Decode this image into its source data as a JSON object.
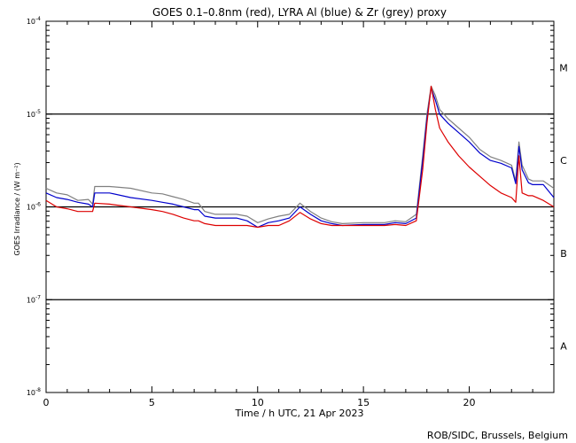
{
  "chart_data": {
    "type": "line",
    "title": "GOES 0.1–0.8nm (red), LYRA Al (blue) & Zr (grey) proxy",
    "xlabel": "Time / h UTC, 21 Apr 2023",
    "ylabel": "GOES Irradiance / (W m⁻²)",
    "xlim": [
      0,
      24
    ],
    "ylim_log10": [
      -8,
      -4
    ],
    "x_ticks": [
      0,
      5,
      10,
      15,
      20
    ],
    "y_tick_labels": [
      {
        "exp": -4,
        "label": "10",
        "sup": "-4"
      },
      {
        "exp": -5,
        "label": "10",
        "sup": "-5"
      },
      {
        "exp": -6,
        "label": "10",
        "sup": "-6"
      },
      {
        "exp": -7,
        "label": "10",
        "sup": "-7"
      },
      {
        "exp": -8,
        "label": "10",
        "sup": "-8"
      }
    ],
    "reference_lines_exp": [
      -5,
      -6,
      -7
    ],
    "flare_classes": [
      {
        "label": "M",
        "center_exp": -4.5
      },
      {
        "label": "C",
        "center_exp": -5.5
      },
      {
        "label": "B",
        "center_exp": -6.5
      },
      {
        "label": "A",
        "center_exp": -7.5
      }
    ],
    "series": [
      {
        "name": "LYRA Zr proxy",
        "color": "#808080",
        "x": [
          0,
          0.5,
          1,
          1.5,
          2,
          2.2,
          2.3,
          3,
          4,
          5,
          5.5,
          6,
          6.5,
          7,
          7.2,
          7.5,
          8,
          8.5,
          9,
          9.5,
          10,
          10.5,
          11,
          11.5,
          12,
          12.5,
          13,
          13.5,
          14,
          15,
          16,
          16.5,
          17,
          17.5,
          17.8,
          18,
          18.2,
          18.4,
          18.6,
          19,
          19.5,
          20,
          20.5,
          21,
          21.5,
          22,
          22.2,
          22.35,
          22.5,
          22.8,
          23,
          23.5,
          24
        ],
        "log10": [
          -5.8,
          -5.85,
          -5.87,
          -5.93,
          -5.92,
          -5.97,
          -5.78,
          -5.78,
          -5.8,
          -5.85,
          -5.86,
          -5.89,
          -5.92,
          -5.96,
          -5.96,
          -6.05,
          -6.08,
          -6.08,
          -6.08,
          -6.1,
          -6.17,
          -6.13,
          -6.1,
          -6.08,
          -5.96,
          -6.05,
          -6.12,
          -6.16,
          -6.18,
          -6.17,
          -6.17,
          -6.15,
          -6.16,
          -6.08,
          -5.45,
          -5.0,
          -4.7,
          -4.8,
          -4.95,
          -5.05,
          -5.15,
          -5.25,
          -5.38,
          -5.46,
          -5.5,
          -5.55,
          -5.72,
          -5.3,
          -5.55,
          -5.7,
          -5.72,
          -5.72,
          -5.8
        ]
      },
      {
        "name": "LYRA Al proxy",
        "color": "#0000cc",
        "x": [
          0,
          0.5,
          1,
          1.5,
          2,
          2.2,
          2.3,
          3,
          4,
          5,
          5.5,
          6,
          6.5,
          7,
          7.2,
          7.5,
          8,
          8.5,
          9,
          9.5,
          10,
          10.5,
          11,
          11.5,
          12,
          12.5,
          13,
          13.5,
          14,
          15,
          16,
          16.5,
          17,
          17.5,
          17.8,
          18,
          18.2,
          18.4,
          18.6,
          19,
          19.5,
          20,
          20.5,
          21,
          21.5,
          22,
          22.2,
          22.35,
          22.5,
          22.8,
          23,
          23.5,
          24
        ],
        "log10": [
          -5.85,
          -5.9,
          -5.92,
          -5.95,
          -5.97,
          -6.0,
          -5.85,
          -5.85,
          -5.9,
          -5.93,
          -5.95,
          -5.97,
          -6.0,
          -6.03,
          -6.03,
          -6.1,
          -6.12,
          -6.12,
          -6.12,
          -6.15,
          -6.22,
          -6.17,
          -6.15,
          -6.12,
          -6.0,
          -6.08,
          -6.15,
          -6.18,
          -6.2,
          -6.19,
          -6.19,
          -6.17,
          -6.18,
          -6.12,
          -5.5,
          -5.05,
          -4.72,
          -4.85,
          -5.0,
          -5.1,
          -5.2,
          -5.3,
          -5.42,
          -5.5,
          -5.53,
          -5.58,
          -5.75,
          -5.35,
          -5.6,
          -5.74,
          -5.76,
          -5.76,
          -5.9
        ]
      },
      {
        "name": "GOES 0.1-0.8nm",
        "color": "#dd0000",
        "x": [
          0,
          0.5,
          1,
          1.5,
          2,
          2.2,
          2.3,
          3,
          4,
          5,
          5.5,
          6,
          6.5,
          7,
          7.2,
          7.5,
          8,
          8.5,
          9,
          9.5,
          10,
          10.5,
          11,
          11.5,
          12,
          12.5,
          13,
          13.5,
          14,
          15,
          16,
          16.5,
          17,
          17.5,
          17.8,
          18,
          18.2,
          18.4,
          18.6,
          19,
          19.5,
          20,
          20.5,
          21,
          21.5,
          22,
          22.2,
          22.35,
          22.5,
          22.8,
          23,
          23.5,
          24
        ],
        "log10": [
          -5.93,
          -6.0,
          -6.02,
          -6.05,
          -6.05,
          -6.05,
          -5.96,
          -5.97,
          -6.0,
          -6.03,
          -6.05,
          -6.08,
          -6.12,
          -6.15,
          -6.15,
          -6.18,
          -6.2,
          -6.2,
          -6.2,
          -6.2,
          -6.22,
          -6.2,
          -6.2,
          -6.15,
          -6.06,
          -6.13,
          -6.18,
          -6.2,
          -6.2,
          -6.2,
          -6.2,
          -6.19,
          -6.2,
          -6.15,
          -5.6,
          -5.1,
          -4.7,
          -4.95,
          -5.15,
          -5.3,
          -5.45,
          -5.57,
          -5.67,
          -5.77,
          -5.85,
          -5.9,
          -5.95,
          -5.45,
          -5.85,
          -5.88,
          -5.88,
          -5.93,
          -6.0
        ]
      }
    ]
  },
  "footer": {
    "credit": "ROB/SIDC, Brussels, Belgium"
  }
}
